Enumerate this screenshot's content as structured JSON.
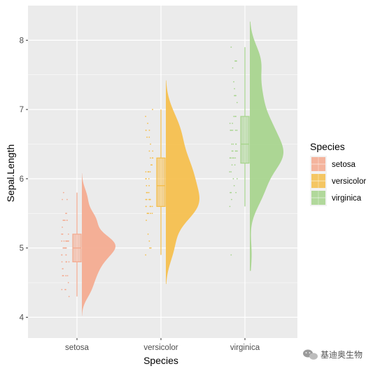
{
  "chart_data": {
    "type": "raincloud",
    "xlabel": "Species",
    "ylabel": "Sepal.Length",
    "ylim": [
      3.7,
      8.5
    ],
    "yticks": [
      4,
      5,
      6,
      7,
      8
    ],
    "grid": true,
    "legend": {
      "title": "Species",
      "position": "right"
    },
    "categories": [
      "setosa",
      "versicolor",
      "virginica"
    ],
    "series": [
      {
        "name": "setosa",
        "color": "#F4A98E",
        "box": {
          "min": 4.3,
          "q1": 4.8,
          "median": 5.0,
          "q3": 5.2,
          "max": 5.8
        },
        "density_range": [
          4.02,
          6.08
        ],
        "points": [
          5.1,
          4.9,
          4.7,
          4.6,
          5.0,
          5.4,
          4.6,
          5.0,
          4.4,
          4.9,
          5.4,
          4.8,
          4.8,
          4.3,
          5.8,
          5.7,
          5.4,
          5.1,
          5.7,
          5.1,
          5.4,
          5.1,
          4.6,
          5.1,
          4.8,
          5.0,
          5.0,
          5.2,
          5.2,
          4.7,
          4.8,
          5.4,
          5.2,
          5.5,
          4.9,
          5.0,
          5.5,
          4.9,
          4.4,
          5.1,
          5.0,
          4.5,
          4.4,
          5.0,
          5.1,
          4.8,
          5.1,
          4.6,
          5.3,
          5.0
        ]
      },
      {
        "name": "versicolor",
        "color": "#F5BE4A",
        "box": {
          "min": 4.9,
          "q1": 5.6,
          "median": 5.9,
          "q3": 6.3,
          "max": 7.0
        },
        "density_range": [
          4.48,
          7.42
        ],
        "points": [
          7.0,
          6.4,
          6.9,
          5.5,
          6.5,
          5.7,
          6.3,
          4.9,
          6.6,
          5.2,
          5.0,
          5.9,
          6.0,
          6.1,
          5.6,
          6.7,
          5.6,
          5.8,
          6.2,
          5.6,
          5.9,
          6.1,
          6.3,
          6.1,
          6.4,
          6.6,
          6.8,
          6.7,
          6.0,
          5.7,
          5.5,
          5.5,
          5.8,
          6.0,
          5.4,
          6.0,
          6.7,
          6.3,
          5.6,
          5.5,
          5.5,
          6.1,
          5.8,
          5.0,
          5.6,
          5.7,
          5.7,
          6.2,
          5.1,
          5.7
        ]
      },
      {
        "name": "virginica",
        "color": "#A6D48C",
        "box": {
          "min": 5.6,
          "q1": 6.225,
          "median": 6.5,
          "q3": 6.9,
          "max": 7.9
        },
        "density_range": [
          4.67,
          8.27
        ],
        "points": [
          6.3,
          5.8,
          7.1,
          6.3,
          6.5,
          7.6,
          4.9,
          7.3,
          6.7,
          7.2,
          6.5,
          6.4,
          6.8,
          5.7,
          5.8,
          6.4,
          6.5,
          7.7,
          7.7,
          6.0,
          6.9,
          5.6,
          7.7,
          6.3,
          6.7,
          7.2,
          6.2,
          6.1,
          6.4,
          7.2,
          7.4,
          7.9,
          6.4,
          6.3,
          6.1,
          7.7,
          6.3,
          6.4,
          6.0,
          6.9,
          6.7,
          6.9,
          5.8,
          6.8,
          6.7,
          6.7,
          6.3,
          6.5,
          6.2,
          5.9
        ]
      }
    ]
  },
  "watermark": {
    "text": "基迪奥生物",
    "icon": "wechat-icon"
  }
}
